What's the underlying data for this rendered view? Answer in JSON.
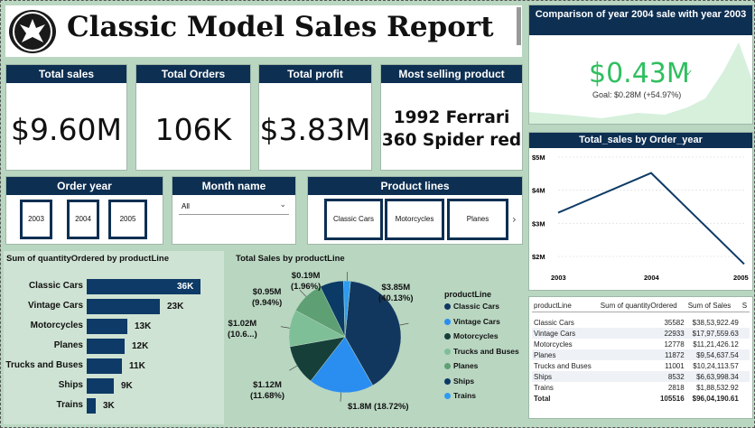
{
  "report": {
    "title": "Classic Model Sales Report"
  },
  "colors": {
    "navy": "#0d2f52",
    "green_bg": "#b9d6c1",
    "kpi_green": "#2fbf5f"
  },
  "kpis": [
    {
      "title": "Total sales",
      "value": "$9.60M"
    },
    {
      "title": "Total Orders",
      "value": "106K"
    },
    {
      "title": "Total profit",
      "value": "$3.83M"
    },
    {
      "title": "Most selling product",
      "value_line1": "1992 Ferrari",
      "value_line2": "360 Spider red"
    }
  ],
  "comparison": {
    "title": "Comparison of year 2004 sale with year 2003",
    "value": "$0.43M",
    "check": "✓",
    "goal": "Goal: $0.28M (+54.97%)"
  },
  "slicers": {
    "year": {
      "title": "Order year",
      "options": [
        "2003",
        "2004",
        "2005"
      ]
    },
    "month": {
      "title": "Month name",
      "selected": "All"
    },
    "product_lines": {
      "title": "Product lines",
      "options": [
        "Classic Cars",
        "Motorcycles",
        "Planes"
      ]
    }
  },
  "bar_panel": {
    "title": "Sum of quantityOrdered by productLine"
  },
  "pie_panel": {
    "title": "Total Sales by productLine",
    "legend_title": "productLine"
  },
  "line_panel": {
    "title": "Total_sales by Order_year"
  },
  "chart_data": [
    {
      "type": "bar",
      "title": "Sum of quantityOrdered by productLine",
      "categories": [
        "Classic Cars",
        "Vintage Cars",
        "Motorcycles",
        "Planes",
        "Trucks and Buses",
        "Ships",
        "Trains"
      ],
      "values": [
        35582,
        22933,
        12778,
        11872,
        11001,
        8532,
        2818
      ],
      "labels": [
        "36K",
        "23K",
        "13K",
        "12K",
        "11K",
        "9K",
        "3K"
      ]
    },
    {
      "type": "pie",
      "title": "Total Sales by productLine",
      "categories": [
        "Classic Cars",
        "Vintage Cars",
        "Motorcycles",
        "Trucks and Buses",
        "Planes",
        "Ships",
        "Trains"
      ],
      "values": [
        3.85,
        1.8,
        1.12,
        1.02,
        0.95,
        0.66,
        0.19
      ],
      "slice_labels": [
        {
          "line1": "$3.85M",
          "line2": "(40.13%)"
        },
        {
          "line1": "$1.8M (18.72%)",
          "line2": ""
        },
        {
          "line1": "$1.12M",
          "line2": "(11.68%)"
        },
        {
          "line1": "$1.02M",
          "line2": "(10.6...)"
        },
        {
          "line1": "$0.95M",
          "line2": "(9.94%)"
        },
        {
          "line1": "",
          "line2": ""
        },
        {
          "line1": "$0.19M",
          "line2": "(1.96%)"
        }
      ],
      "colors": [
        "#12375f",
        "#2a8df0",
        "#163f3a",
        "#7fbf98",
        "#5e9f73",
        "#0b3a66",
        "#2d9cf0"
      ]
    },
    {
      "type": "line",
      "title": "Total_sales by Order_year",
      "x": [
        "2003",
        "2004",
        "2005"
      ],
      "values": [
        3.32,
        4.52,
        1.77
      ],
      "yticks": [
        "$5M",
        "$4M",
        "$3M",
        "$2M"
      ],
      "ylim": [
        2,
        5
      ]
    },
    {
      "type": "area",
      "title": "Comparison of year 2004 sale with year 2003"
    }
  ],
  "table": {
    "headers": [
      "productLine",
      "Sum of quantityOrdered",
      "Sum of Sales",
      "S"
    ],
    "rows": [
      [
        "Classic Cars",
        "35582",
        "$38,53,922.49"
      ],
      [
        "Vintage Cars",
        "22933",
        "$17,97,559.63"
      ],
      [
        "Motorcycles",
        "12778",
        "$11,21,426.12"
      ],
      [
        "Planes",
        "11872",
        "$9,54,637.54"
      ],
      [
        "Trucks and Buses",
        "11001",
        "$10,24,113.57"
      ],
      [
        "Ships",
        "8532",
        "$6,63,998.34"
      ],
      [
        "Trains",
        "2818",
        "$1,88,532.92"
      ]
    ],
    "total": [
      "Total",
      "105516",
      "$96,04,190.61"
    ]
  }
}
